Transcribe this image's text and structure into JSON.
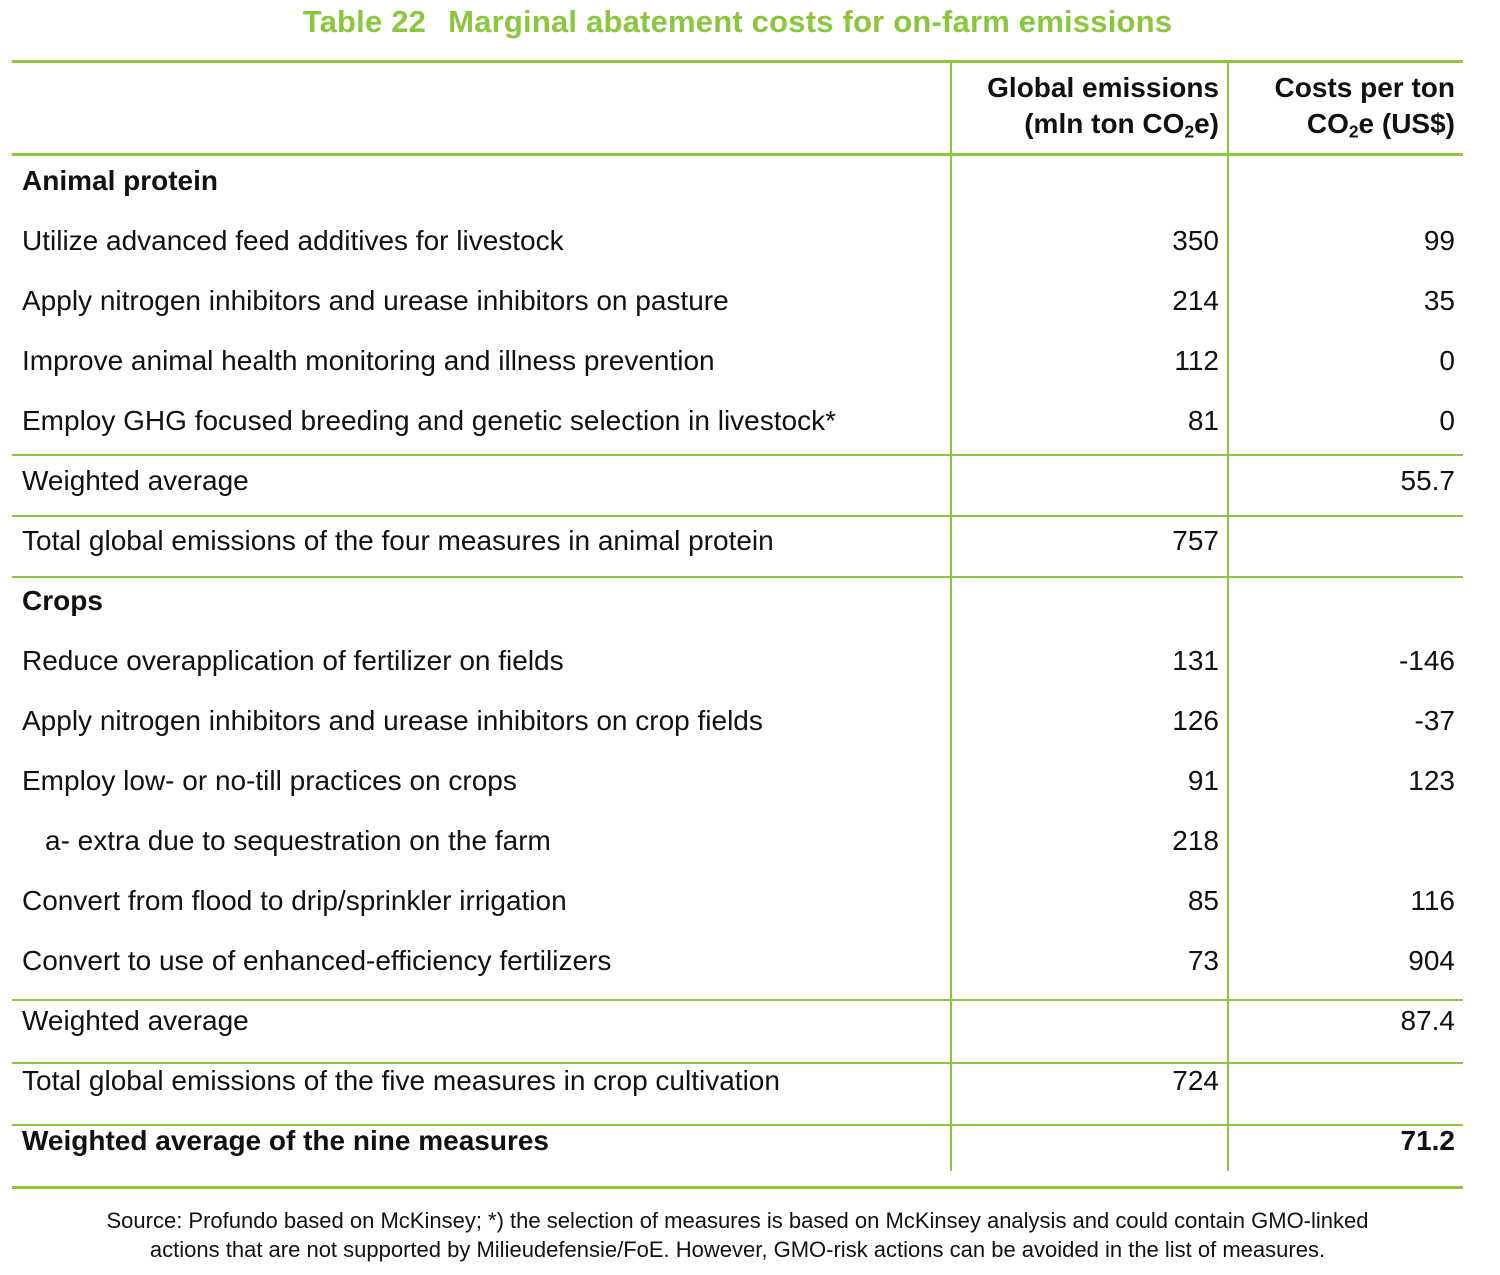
{
  "title": {
    "number": "Table 22",
    "text": "Marginal abatement costs for on-farm emissions"
  },
  "headers": {
    "emissions": {
      "line1": "Global emissions",
      "line2_pre": "(mln ton CO",
      "line2_sub": "2",
      "line2_post": "e)"
    },
    "costs": {
      "line1": "Costs per ton",
      "line2_pre": "CO",
      "line2_sub": "2",
      "line2_post": "e (US$)"
    }
  },
  "rows": [
    {
      "label": "Animal protein",
      "emissions": "",
      "cost": "",
      "style": "section"
    },
    {
      "label": "Utilize advanced feed additives for livestock",
      "emissions": "350",
      "cost": "99"
    },
    {
      "label": "Apply nitrogen inhibitors and urease inhibitors on pasture",
      "emissions": "214",
      "cost": "35"
    },
    {
      "label": "Improve animal health monitoring and illness prevention",
      "emissions": "112",
      "cost": "0"
    },
    {
      "label": "Employ GHG focused breeding and genetic selection in livestock*",
      "emissions": "81",
      "cost": "0"
    },
    {
      "label": "Weighted average",
      "emissions": "",
      "cost": "55.7"
    },
    {
      "label": "Total global emissions of the four measures in animal protein",
      "emissions": "757",
      "cost": ""
    },
    {
      "label": "Crops",
      "emissions": "",
      "cost": "",
      "style": "section"
    },
    {
      "label": "Reduce overapplication of fertilizer on fields",
      "emissions": "131",
      "cost": "-146"
    },
    {
      "label": "Apply nitrogen inhibitors and urease inhibitors on crop fields",
      "emissions": "126",
      "cost": "-37"
    },
    {
      "label": "Employ low- or no-till practices on crops",
      "emissions": "91",
      "cost": "123"
    },
    {
      "label": "a- extra due to sequestration on the farm",
      "emissions": "218",
      "cost": "",
      "style": "indent"
    },
    {
      "label": "Convert from flood to drip/sprinkler irrigation",
      "emissions": "85",
      "cost": "116"
    },
    {
      "label": "Convert to use of enhanced-efficiency fertilizers",
      "emissions": "73",
      "cost": "904"
    },
    {
      "label": "Weighted average",
      "emissions": "",
      "cost": "87.4"
    },
    {
      "label": "Total global emissions of the five measures in crop cultivation",
      "emissions": "724",
      "cost": ""
    },
    {
      "label": "Weighted average of the nine measures",
      "emissions": "",
      "cost": "71.2",
      "style": "bold"
    }
  ],
  "source": {
    "line1": "Source: Profundo based on McKinsey; *) the selection of measures is based on McKinsey analysis and could contain GMO-linked",
    "line2": "actions that are not supported by Milieudefensie/FoE. However, GMO-risk actions can be avoided in the list of measures."
  },
  "colors": {
    "accent": "#8cc63f",
    "text": "#111111"
  }
}
